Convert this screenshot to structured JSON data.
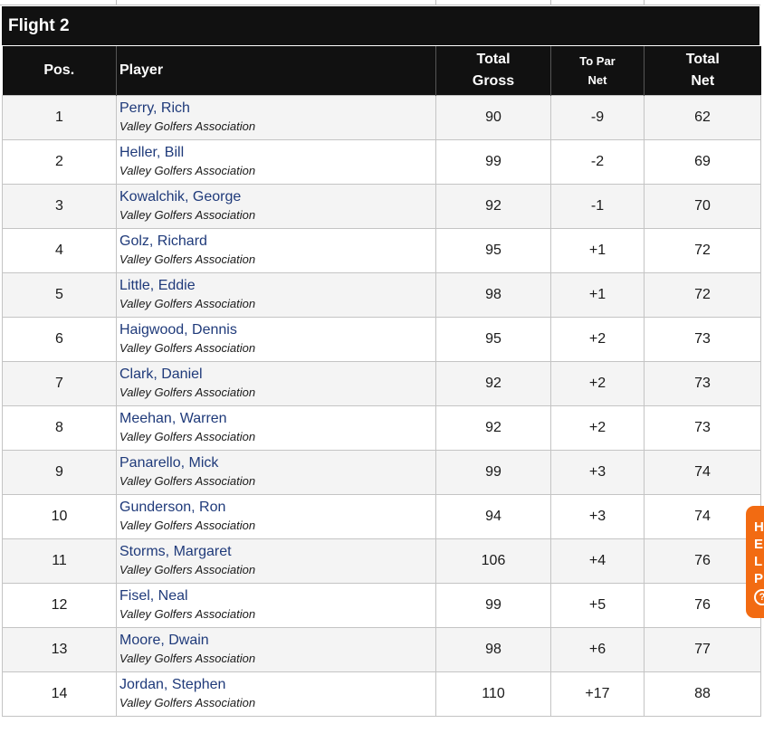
{
  "flight": {
    "title": "Flight 2"
  },
  "columns": {
    "pos": "Pos.",
    "player": "Player",
    "total_gross_line1": "Total",
    "total_gross_line2": "Gross",
    "to_par_line1": "To Par",
    "to_par_line2": "Net",
    "total_net_line1": "Total",
    "total_net_line2": "Net"
  },
  "rows": [
    {
      "pos": "1",
      "name": "Perry, Rich",
      "club": "Valley Golfers Association",
      "gross": "90",
      "to_par": "-9",
      "net": "62"
    },
    {
      "pos": "2",
      "name": "Heller, Bill",
      "club": "Valley Golfers Association",
      "gross": "99",
      "to_par": "-2",
      "net": "69"
    },
    {
      "pos": "3",
      "name": "Kowalchik, George",
      "club": "Valley Golfers Association",
      "gross": "92",
      "to_par": "-1",
      "net": "70"
    },
    {
      "pos": "4",
      "name": "Golz, Richard",
      "club": "Valley Golfers Association",
      "gross": "95",
      "to_par": "+1",
      "net": "72"
    },
    {
      "pos": "5",
      "name": "Little, Eddie",
      "club": "Valley Golfers Association",
      "gross": "98",
      "to_par": "+1",
      "net": "72"
    },
    {
      "pos": "6",
      "name": "Haigwood, Dennis",
      "club": "Valley Golfers Association",
      "gross": "95",
      "to_par": "+2",
      "net": "73"
    },
    {
      "pos": "7",
      "name": "Clark, Daniel",
      "club": "Valley Golfers Association",
      "gross": "92",
      "to_par": "+2",
      "net": "73"
    },
    {
      "pos": "8",
      "name": "Meehan, Warren",
      "club": "Valley Golfers Association",
      "gross": "92",
      "to_par": "+2",
      "net": "73"
    },
    {
      "pos": "9",
      "name": "Panarello, Mick",
      "club": "Valley Golfers Association",
      "gross": "99",
      "to_par": "+3",
      "net": "74"
    },
    {
      "pos": "10",
      "name": "Gunderson, Ron",
      "club": "Valley Golfers Association",
      "gross": "94",
      "to_par": "+3",
      "net": "74"
    },
    {
      "pos": "11",
      "name": "Storms, Margaret",
      "club": "Valley Golfers Association",
      "gross": "106",
      "to_par": "+4",
      "net": "76"
    },
    {
      "pos": "12",
      "name": "Fisel, Neal",
      "club": "Valley Golfers Association",
      "gross": "99",
      "to_par": "+5",
      "net": "76"
    },
    {
      "pos": "13",
      "name": "Moore, Dwain",
      "club": "Valley Golfers Association",
      "gross": "98",
      "to_par": "+6",
      "net": "77"
    },
    {
      "pos": "14",
      "name": "Jordan, Stephen",
      "club": "Valley Golfers Association",
      "gross": "110",
      "to_par": "+17",
      "net": "88"
    }
  ],
  "colors": {
    "under_par": "#c00000",
    "over_par": "#2a1a66",
    "help_tab": "#f26b12"
  },
  "help_tab": {
    "letters": [
      "H",
      "E",
      "L",
      "P"
    ],
    "icon": "question-circle-icon",
    "icon_glyph": "?"
  }
}
